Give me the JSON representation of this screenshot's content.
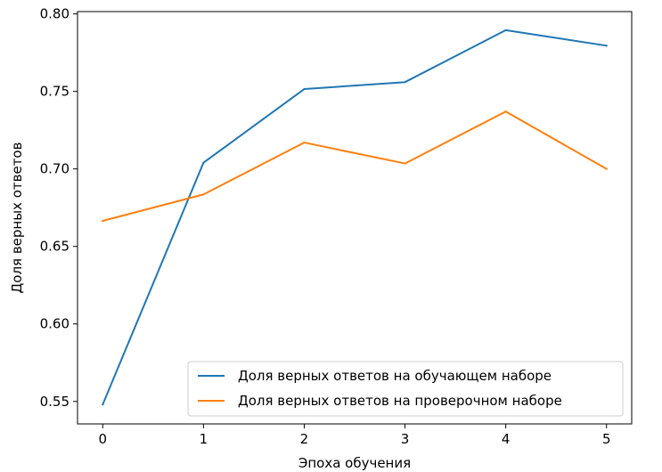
{
  "chart_data": {
    "type": "line",
    "x": [
      0,
      1,
      2,
      3,
      4,
      5
    ],
    "series": [
      {
        "name": "Доля верных ответов на обучающем наборе",
        "values": [
          0.548,
          0.704,
          0.7515,
          0.756,
          0.7895,
          0.7795
        ],
        "color": "#1f77b4"
      },
      {
        "name": "Доля верных ответов на проверочном наборе",
        "values": [
          0.6665,
          0.6835,
          0.717,
          0.7035,
          0.737,
          0.7
        ],
        "color": "#ff7f0e"
      }
    ],
    "xlabel": "Эпоха обучения",
    "ylabel": "Доля верных ответов",
    "xlim": [
      -0.25,
      5.25
    ],
    "ylim": [
      0.5355,
      0.8015
    ],
    "xticks": [
      0,
      1,
      2,
      3,
      4,
      5
    ],
    "xtick_labels": [
      "0",
      "1",
      "2",
      "3",
      "4",
      "5"
    ],
    "yticks": [
      0.55,
      0.6,
      0.65,
      0.7,
      0.75,
      0.8
    ],
    "ytick_labels": [
      "0.55",
      "0.60",
      "0.65",
      "0.70",
      "0.75",
      "0.80"
    ],
    "grid": false,
    "legend_position": "lower-right"
  }
}
